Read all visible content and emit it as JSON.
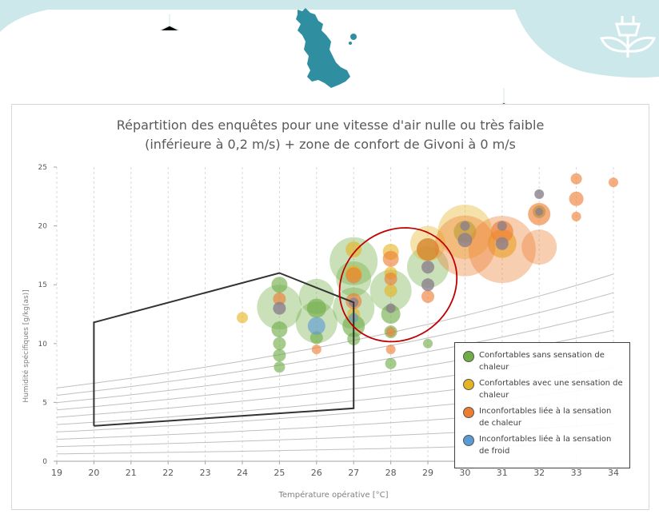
{
  "colors": {
    "banner": "#cde8ea",
    "island": "#2f8fa0",
    "comfortable_no_heat": "#70ad47",
    "comfortable_heat": "#e6b422",
    "uncomfortable_heat": "#ed7d31",
    "uncomfortable_cold": "#5b9bd5",
    "givoni_zone": "#333333",
    "highlight_ellipse": "#c00000"
  },
  "chart_data": {
    "type": "scatter",
    "title_line1": "Répartition des enquêtes pour une vitesse d'air nulle ou très faible",
    "title_line2": "(inférieure à 0,2 m/s) + zone de confort de Givoni à 0 m/s",
    "xlabel": "Température opérative [°C]",
    "ylabel": "Humidité spécifiques [g/kg(as)]",
    "xlim": [
      19,
      34
    ],
    "ylim": [
      0,
      25
    ],
    "xticks": [
      "19",
      "20",
      "21",
      "22",
      "23",
      "24",
      "25",
      "26",
      "27",
      "28",
      "29",
      "30",
      "31",
      "32",
      "33",
      "34"
    ],
    "yticks": [
      "0",
      "5",
      "10",
      "15",
      "20",
      "25"
    ],
    "grid": "vertical dashed",
    "legend_position": "bottom-right",
    "givoni_zone": [
      [
        20,
        3
      ],
      [
        20,
        11.8
      ],
      [
        25,
        16
      ],
      [
        27,
        13.5
      ],
      [
        27,
        4.5
      ],
      [
        20,
        3
      ]
    ],
    "highlight_ellipse": {
      "cx": 28.2,
      "cy": 15,
      "rx": 1.65,
      "ry": 4.6,
      "rotation_deg": 38
    },
    "series": [
      {
        "name": "Confortables sans sensation de chaleur",
        "key": "comfortable_no_heat",
        "points": [
          {
            "x": 25,
            "y": 13.1,
            "r": 28
          },
          {
            "x": 25,
            "y": 15,
            "r": 10
          },
          {
            "x": 25,
            "y": 11.2,
            "r": 10
          },
          {
            "x": 25,
            "y": 10,
            "r": 8
          },
          {
            "x": 25,
            "y": 9,
            "r": 8
          },
          {
            "x": 25,
            "y": 8,
            "r": 7
          },
          {
            "x": 26,
            "y": 14,
            "r": 22
          },
          {
            "x": 26,
            "y": 11.8,
            "r": 26
          },
          {
            "x": 26,
            "y": 13,
            "r": 12
          },
          {
            "x": 26,
            "y": 10.5,
            "r": 8
          },
          {
            "x": 27,
            "y": 17,
            "r": 30
          },
          {
            "x": 27,
            "y": 15.5,
            "r": 22
          },
          {
            "x": 27,
            "y": 13,
            "r": 26
          },
          {
            "x": 27,
            "y": 11.5,
            "r": 14
          },
          {
            "x": 27,
            "y": 10.4,
            "r": 8
          },
          {
            "x": 28,
            "y": 14.5,
            "r": 26
          },
          {
            "x": 28,
            "y": 12.5,
            "r": 12
          },
          {
            "x": 28,
            "y": 11,
            "r": 8
          },
          {
            "x": 28,
            "y": 8.3,
            "r": 7
          },
          {
            "x": 29,
            "y": 16.5,
            "r": 26
          },
          {
            "x": 29,
            "y": 18,
            "r": 14
          },
          {
            "x": 29,
            "y": 10,
            "r": 6
          },
          {
            "x": 30,
            "y": 19.5,
            "r": 14
          },
          {
            "x": 32,
            "y": 21.2,
            "r": 8
          }
        ]
      },
      {
        "name": "Confortables avec une sensation de chaleur",
        "key": "comfortable_heat",
        "points": [
          {
            "x": 24,
            "y": 12.2,
            "r": 7
          },
          {
            "x": 27,
            "y": 18,
            "r": 10
          },
          {
            "x": 27,
            "y": 16,
            "r": 10
          },
          {
            "x": 27,
            "y": 12.5,
            "r": 8
          },
          {
            "x": 28,
            "y": 17.8,
            "r": 10
          },
          {
            "x": 28,
            "y": 16,
            "r": 8
          },
          {
            "x": 28,
            "y": 14.5,
            "r": 8
          },
          {
            "x": 29,
            "y": 18.5,
            "r": 22
          },
          {
            "x": 30,
            "y": 19.5,
            "r": 34
          },
          {
            "x": 31,
            "y": 18.5,
            "r": 18
          }
        ]
      },
      {
        "name": "Inconfortables liée à la sensation de chaleur",
        "key": "uncomfortable_heat",
        "points": [
          {
            "x": 25,
            "y": 13.8,
            "r": 8
          },
          {
            "x": 26,
            "y": 9.5,
            "r": 6
          },
          {
            "x": 27,
            "y": 15.8,
            "r": 10
          },
          {
            "x": 27,
            "y": 13.6,
            "r": 10
          },
          {
            "x": 28,
            "y": 17.2,
            "r": 10
          },
          {
            "x": 28,
            "y": 15.5,
            "r": 8
          },
          {
            "x": 28,
            "y": 11,
            "r": 6
          },
          {
            "x": 28,
            "y": 9.5,
            "r": 6
          },
          {
            "x": 29,
            "y": 18,
            "r": 14
          },
          {
            "x": 29,
            "y": 14,
            "r": 8
          },
          {
            "x": 30,
            "y": 18.3,
            "r": 38
          },
          {
            "x": 31,
            "y": 18,
            "r": 42
          },
          {
            "x": 31,
            "y": 19.5,
            "r": 14
          },
          {
            "x": 32,
            "y": 18.2,
            "r": 22
          },
          {
            "x": 32,
            "y": 21,
            "r": 14
          },
          {
            "x": 33,
            "y": 24,
            "r": 7
          },
          {
            "x": 33,
            "y": 22.3,
            "r": 9
          },
          {
            "x": 33,
            "y": 20.8,
            "r": 6
          },
          {
            "x": 34,
            "y": 23.7,
            "r": 6
          }
        ]
      },
      {
        "name": "Inconfortables liée à la sensation de froid",
        "key": "uncomfortable_cold",
        "points": [
          {
            "x": 26,
            "y": 11.5,
            "r": 11
          },
          {
            "x": 27,
            "y": 12.2,
            "r": 6
          }
        ]
      }
    ],
    "neutral_markers": [
      {
        "x": 25,
        "y": 13,
        "r": 8
      },
      {
        "x": 27,
        "y": 13.5,
        "r": 6
      },
      {
        "x": 28,
        "y": 13,
        "r": 6
      },
      {
        "x": 29,
        "y": 15,
        "r": 8
      },
      {
        "x": 29,
        "y": 16.5,
        "r": 8
      },
      {
        "x": 30,
        "y": 18.8,
        "r": 9
      },
      {
        "x": 30,
        "y": 20,
        "r": 6
      },
      {
        "x": 31,
        "y": 18.5,
        "r": 8
      },
      {
        "x": 31,
        "y": 20,
        "r": 6
      },
      {
        "x": 32,
        "y": 22.7,
        "r": 6
      },
      {
        "x": 32,
        "y": 21.2,
        "r": 5
      }
    ]
  },
  "legend": {
    "items": [
      {
        "label": "Confortables sans sensation de chaleur",
        "key": "comfortable_no_heat"
      },
      {
        "label": "Confortables avec une sensation de chaleur",
        "key": "comfortable_heat"
      },
      {
        "label": "Inconfortables liée à la sensation de chaleur",
        "key": "uncomfortable_heat"
      },
      {
        "label": "Inconfortables liée à la sensation de froid",
        "key": "uncomfortable_cold"
      }
    ]
  }
}
